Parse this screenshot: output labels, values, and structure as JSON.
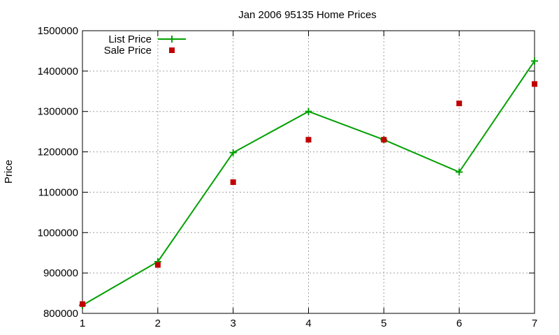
{
  "chart_data": {
    "type": "line",
    "title": "Jan 2006 95135 Home Prices",
    "xlabel": "",
    "ylabel": "Price",
    "x": [
      1,
      2,
      3,
      4,
      5,
      6,
      7
    ],
    "xlim": [
      1,
      7
    ],
    "ylim": [
      800000,
      1500000
    ],
    "x_ticks": [
      "1",
      "2",
      "3",
      "4",
      "5",
      "6",
      "7"
    ],
    "y_ticks": [
      "800000",
      "900000",
      "1000000",
      "1100000",
      "1200000",
      "1300000",
      "1400000",
      "1500000"
    ],
    "grid": true,
    "legend_position": "top-left",
    "series": [
      {
        "name": "List Price",
        "style": "line-with-plus-markers",
        "color": "#00a000",
        "values": [
          820000,
          928000,
          1198000,
          1300000,
          1230000,
          1150000,
          1425000
        ]
      },
      {
        "name": "Sale Price",
        "style": "square-markers",
        "color": "#c00000",
        "values": [
          823000,
          920000,
          1125000,
          1230000,
          1230000,
          1320000,
          1368000
        ]
      }
    ]
  }
}
